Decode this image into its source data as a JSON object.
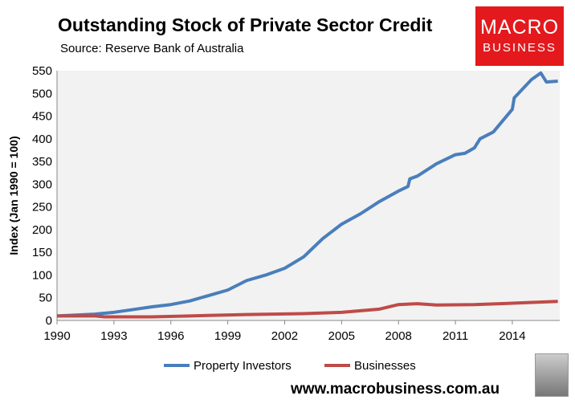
{
  "chart_data": {
    "type": "line",
    "title": "Outstanding Stock of Private Sector Credit",
    "subtitle": "Source: Reserve Bank of Australia",
    "ylabel": "Index (Jan 1990 = 100)",
    "xlabel": "",
    "ylim": [
      0,
      550
    ],
    "xlim": [
      1990,
      2016.5
    ],
    "yticks": [
      0,
      50,
      100,
      150,
      200,
      250,
      300,
      350,
      400,
      450,
      500,
      550
    ],
    "xticks": [
      1990,
      1993,
      1996,
      1999,
      2002,
      2005,
      2008,
      2011,
      2014
    ],
    "legend_position": "bottom",
    "series": [
      {
        "name": "Property Investors",
        "color": "#4a7ebb",
        "points": [
          [
            1990,
            10
          ],
          [
            1991,
            12
          ],
          [
            1992,
            14
          ],
          [
            1993,
            18
          ],
          [
            1994,
            24
          ],
          [
            1995,
            30
          ],
          [
            1996,
            35
          ],
          [
            1997,
            43
          ],
          [
            1998,
            55
          ],
          [
            1999,
            67
          ],
          [
            2000,
            88
          ],
          [
            2001,
            100
          ],
          [
            2002,
            115
          ],
          [
            2003,
            140
          ],
          [
            2004,
            180
          ],
          [
            2005,
            212
          ],
          [
            2006,
            235
          ],
          [
            2007,
            262
          ],
          [
            2008,
            285
          ],
          [
            2008.5,
            295
          ],
          [
            2008.6,
            312
          ],
          [
            2009,
            318
          ],
          [
            2010,
            345
          ],
          [
            2011,
            365
          ],
          [
            2011.5,
            368
          ],
          [
            2012,
            380
          ],
          [
            2012.3,
            400
          ],
          [
            2013,
            415
          ],
          [
            2013.5,
            440
          ],
          [
            2014,
            465
          ],
          [
            2014.1,
            490
          ],
          [
            2015,
            530
          ],
          [
            2015.5,
            545
          ],
          [
            2015.8,
            525
          ],
          [
            2016.4,
            527
          ]
        ]
      },
      {
        "name": "Businesses",
        "color": "#be4b48",
        "points": [
          [
            1990,
            10
          ],
          [
            1992,
            10
          ],
          [
            1992.5,
            8
          ],
          [
            1995,
            8
          ],
          [
            1997,
            10
          ],
          [
            2000,
            13
          ],
          [
            2003,
            15
          ],
          [
            2005,
            18
          ],
          [
            2007,
            25
          ],
          [
            2008,
            35
          ],
          [
            2009,
            37
          ],
          [
            2010,
            34
          ],
          [
            2012,
            35
          ],
          [
            2014,
            38
          ],
          [
            2016.4,
            42
          ]
        ]
      }
    ]
  },
  "branding": {
    "logo_line1": "MACRO",
    "logo_line2": "BUSINESS",
    "url": "www.macrobusiness.com.au"
  }
}
